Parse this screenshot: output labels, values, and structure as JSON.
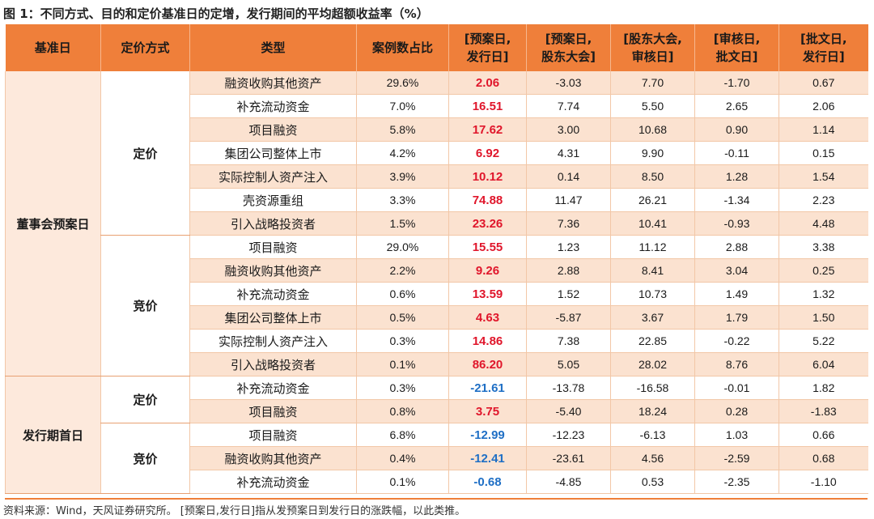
{
  "title": "图 1：不同方式、目的和定价基准日的定增，发行期间的平均超额收益率（%）",
  "headers": {
    "base_date": "基准日",
    "pricing": "定价方式",
    "type": "类型",
    "ratio": "案例数占比",
    "p1_a": "[预案日,",
    "p1_b": "发行日]",
    "p2_a": "[预案日,",
    "p2_b": "股东大会]",
    "p3_a": "[股东大会,",
    "p3_b": "审核日]",
    "p4_a": "[审核日,",
    "p4_b": "批文日]",
    "p5_a": "[批文日,",
    "p5_b": "发行日]"
  },
  "groups": {
    "g1": "董事会预案日",
    "g1_s1": "定价",
    "g1_s2": "竞价",
    "g2": "发行期首日",
    "g2_s1": "定价",
    "g2_s2": "竞价"
  },
  "rows": [
    {
      "type": "融资收购其他资产",
      "ratio": "29.6%",
      "v1": "2.06",
      "v2": "-3.03",
      "v3": "7.70",
      "v4": "-1.70",
      "v5": "0.67"
    },
    {
      "type": "补充流动资金",
      "ratio": "7.0%",
      "v1": "16.51",
      "v2": "7.74",
      "v3": "5.50",
      "v4": "2.65",
      "v5": "2.06"
    },
    {
      "type": "项目融资",
      "ratio": "5.8%",
      "v1": "17.62",
      "v2": "3.00",
      "v3": "10.68",
      "v4": "0.90",
      "v5": "1.14"
    },
    {
      "type": "集团公司整体上市",
      "ratio": "4.2%",
      "v1": "6.92",
      "v2": "4.31",
      "v3": "9.90",
      "v4": "-0.11",
      "v5": "0.15"
    },
    {
      "type": "实际控制人资产注入",
      "ratio": "3.9%",
      "v1": "10.12",
      "v2": "0.14",
      "v3": "8.50",
      "v4": "1.28",
      "v5": "1.54"
    },
    {
      "type": "壳资源重组",
      "ratio": "3.3%",
      "v1": "74.88",
      "v2": "11.47",
      "v3": "26.21",
      "v4": "-1.34",
      "v5": "2.23"
    },
    {
      "type": "引入战略投资者",
      "ratio": "1.5%",
      "v1": "23.26",
      "v2": "7.36",
      "v3": "10.41",
      "v4": "-0.93",
      "v5": "4.48"
    },
    {
      "type": "项目融资",
      "ratio": "29.0%",
      "v1": "15.55",
      "v2": "1.23",
      "v3": "11.12",
      "v4": "2.88",
      "v5": "3.38"
    },
    {
      "type": "融资收购其他资产",
      "ratio": "2.2%",
      "v1": "9.26",
      "v2": "2.88",
      "v3": "8.41",
      "v4": "3.04",
      "v5": "0.25"
    },
    {
      "type": "补充流动资金",
      "ratio": "0.6%",
      "v1": "13.59",
      "v2": "1.52",
      "v3": "10.73",
      "v4": "1.49",
      "v5": "1.32"
    },
    {
      "type": "集团公司整体上市",
      "ratio": "0.5%",
      "v1": "4.63",
      "v2": "-5.87",
      "v3": "3.67",
      "v4": "1.79",
      "v5": "1.50"
    },
    {
      "type": "实际控制人资产注入",
      "ratio": "0.3%",
      "v1": "14.86",
      "v2": "7.38",
      "v3": "22.85",
      "v4": "-0.22",
      "v5": "5.22"
    },
    {
      "type": "引入战略投资者",
      "ratio": "0.1%",
      "v1": "86.20",
      "v2": "5.05",
      "v3": "28.02",
      "v4": "8.76",
      "v5": "6.04"
    },
    {
      "type": "补充流动资金",
      "ratio": "0.3%",
      "v1": "-21.61",
      "v2": "-13.78",
      "v3": "-16.58",
      "v4": "-0.01",
      "v5": "1.82"
    },
    {
      "type": "项目融资",
      "ratio": "0.8%",
      "v1": "3.75",
      "v2": "-5.40",
      "v3": "18.24",
      "v4": "0.28",
      "v5": "-1.83"
    },
    {
      "type": "项目融资",
      "ratio": "6.8%",
      "v1": "-12.99",
      "v2": "-12.23",
      "v3": "-6.13",
      "v4": "1.03",
      "v5": "0.66"
    },
    {
      "type": "融资收购其他资产",
      "ratio": "0.4%",
      "v1": "-12.41",
      "v2": "-23.61",
      "v3": "4.56",
      "v4": "-2.59",
      "v5": "0.68"
    },
    {
      "type": "补充流动资金",
      "ratio": "0.1%",
      "v1": "-0.68",
      "v2": "-4.85",
      "v3": "0.53",
      "v4": "-2.35",
      "v5": "-1.10"
    }
  ],
  "source": "资料来源：Wind，天风证券研究所。 [预案日,发行日]指从发预案日到发行日的涨跌幅，以此类推。",
  "colors": {
    "header": "#ef7f3a",
    "alt_row": "#fbe2d0",
    "positive": "#e0162b",
    "negative": "#1f6fc5"
  }
}
